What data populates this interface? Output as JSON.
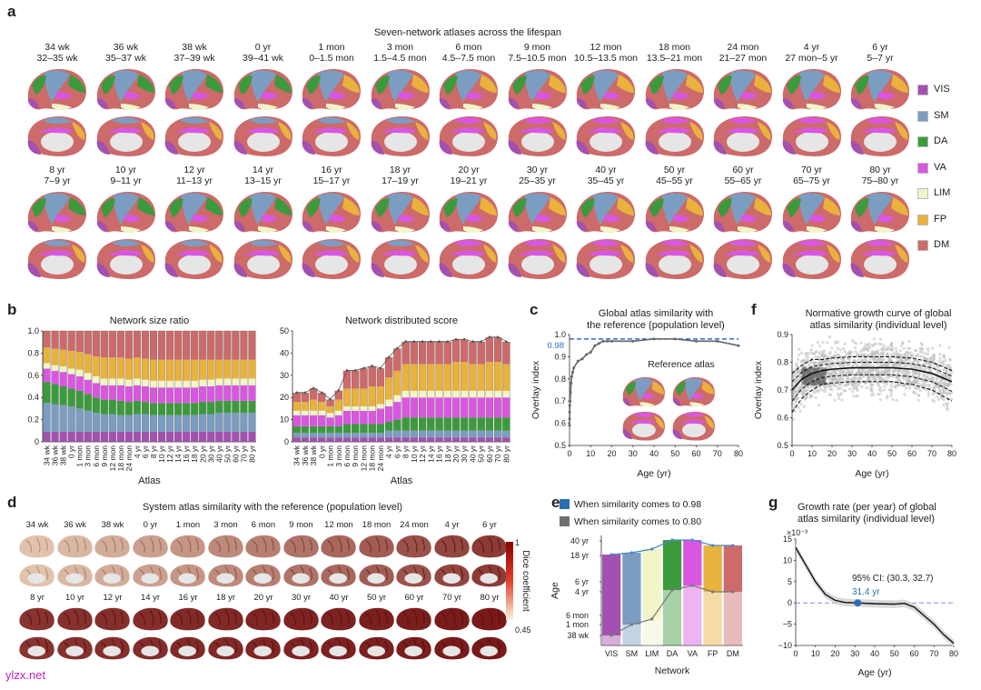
{
  "panel_a": {
    "letter": "a",
    "title": "Seven-network atlases across the lifespan",
    "row1": [
      {
        "age": "34 wk",
        "range": "32–35 wk"
      },
      {
        "age": "36 wk",
        "range": "35–37 wk"
      },
      {
        "age": "38 wk",
        "range": "37–39 wk"
      },
      {
        "age": "0 yr",
        "range": "39–41 wk"
      },
      {
        "age": "1 mon",
        "range": "0–1.5 mon"
      },
      {
        "age": "3 mon",
        "range": "1.5–4.5 mon"
      },
      {
        "age": "6 mon",
        "range": "4.5–7.5 mon"
      },
      {
        "age": "9 mon",
        "range": "7.5–10.5 mon"
      },
      {
        "age": "12 mon",
        "range": "10.5–13.5 mon"
      },
      {
        "age": "18 mon",
        "range": "13.5–21 mon"
      },
      {
        "age": "24 mon",
        "range": "21–27 mon"
      },
      {
        "age": "4 yr",
        "range": "27 mon–5 yr"
      },
      {
        "age": "6 yr",
        "range": "5–7 yr"
      }
    ],
    "row2": [
      {
        "age": "8 yr",
        "range": "7–9 yr"
      },
      {
        "age": "10 yr",
        "range": "9–11 yr"
      },
      {
        "age": "12 yr",
        "range": "11–13 yr"
      },
      {
        "age": "14 yr",
        "range": "13–15 yr"
      },
      {
        "age": "16 yr",
        "range": "15–17 yr"
      },
      {
        "age": "18 yr",
        "range": "17–19 yr"
      },
      {
        "age": "20 yr",
        "range": "19–21 yr"
      },
      {
        "age": "30 yr",
        "range": "25–35 yr"
      },
      {
        "age": "40 yr",
        "range": "35–45 yr"
      },
      {
        "age": "50 yr",
        "range": "45–55 yr"
      },
      {
        "age": "60 yr",
        "range": "55–65 yr"
      },
      {
        "age": "70 yr",
        "range": "65–75 yr"
      },
      {
        "age": "80 yr",
        "range": "75–80 yr"
      }
    ],
    "legend": [
      {
        "name": "VIS",
        "color": "#a350b0"
      },
      {
        "name": "SM",
        "color": "#7c9dc2"
      },
      {
        "name": "DA",
        "color": "#3b9a3c"
      },
      {
        "name": "VA",
        "color": "#d957e0"
      },
      {
        "name": "LIM",
        "color": "#f2f5c8"
      },
      {
        "name": "FP",
        "color": "#e9b23c"
      },
      {
        "name": "DM",
        "color": "#cd6a6a"
      }
    ]
  },
  "panel_b": {
    "letter": "b",
    "atlases": [
      "34 wk",
      "36 wk",
      "38 wk",
      "0 yr",
      "1 mon",
      "3 mon",
      "6 mon",
      "9 mon",
      "12 mon",
      "18 mon",
      "24 mon",
      "4 yr",
      "6 yr",
      "8 yr",
      "10 yr",
      "12 yr",
      "14 yr",
      "16 yr",
      "18 yr",
      "20 yr",
      "30 yr",
      "40 yr",
      "50 yr",
      "60 yr",
      "70 yr",
      "80 yr"
    ],
    "xlabel": "Atlas",
    "left": {
      "title": "Network size ratio",
      "yticks": [
        "0",
        "0.2",
        "0.4",
        "0.6",
        "0.8",
        "1.0"
      ]
    },
    "right": {
      "title": "Network distributed score",
      "yticks": [
        "0",
        "10",
        "20",
        "30",
        "40",
        "50"
      ]
    }
  },
  "panel_c": {
    "letter": "c",
    "title1": "Global atlas similarity with",
    "title2": "the reference (population level)",
    "ylabel": "Overlay index",
    "xlabel": "Age (yr)",
    "ref_label": "0.98",
    "inset": "Reference atlas",
    "yticks": [
      "0.5",
      "0.6",
      "0.7",
      "0.8",
      "0.9",
      "1.0"
    ],
    "xticks": [
      "0",
      "10",
      "20",
      "30",
      "40",
      "50",
      "60",
      "70",
      "80"
    ]
  },
  "panel_d": {
    "letter": "d",
    "title": "System atlas similarity with the reference (population level)",
    "row1": [
      "34 wk",
      "36 wk",
      "38 wk",
      "0 yr",
      "1 mon",
      "3 mon",
      "6 mon",
      "9 mon",
      "12 mon",
      "18 mon",
      "24 mon",
      "4 yr",
      "6 yr"
    ],
    "row2": [
      "8 yr",
      "10 yr",
      "12 yr",
      "14 yr",
      "16 yr",
      "18 yr",
      "20 yr",
      "30 yr",
      "40 yr",
      "50 yr",
      "60 yr",
      "70 yr",
      "80 yr"
    ],
    "cbar_label": "Dice coefficient",
    "cbar_max": "1",
    "cbar_min": "0.45"
  },
  "panel_e": {
    "letter": "e",
    "legend1": "When similarity comes to 0.98",
    "legend2": "When similarity comes to 0.80",
    "color1": "#2a6fb5",
    "color2": "#707070",
    "ylabel": "Age",
    "xlabel": "Network",
    "yticks": [
      "40 yr",
      "18 yr",
      "6 yr",
      "4 yr",
      "6 mon",
      "1 mon",
      "38 wk"
    ],
    "networks": [
      "VIS",
      "SM",
      "LIM",
      "DA",
      "VA",
      "FP",
      "DM"
    ]
  },
  "panel_f": {
    "letter": "f",
    "title1": "Normative growth curve of global",
    "title2": "atlas similarity (individual level)",
    "ylabel": "Overlay index",
    "xlabel": "Age (yr)",
    "yticks": [
      "0.5",
      "0.6",
      "0.7",
      "0.8",
      "0.9"
    ],
    "xticks": [
      "0",
      "10",
      "20",
      "30",
      "40",
      "50",
      "60",
      "70",
      "80"
    ]
  },
  "panel_g": {
    "letter": "g",
    "title1": "Growth rate (per year) of global",
    "title2": "atlas similarity (individual level)",
    "exponent": "×10⁻³",
    "ci": "95% CI: (30.3, 32.7)",
    "peak": "31.4 yr",
    "xlabel": "Age (yr)",
    "yticks": [
      "15",
      "10",
      "5",
      "0",
      "−5",
      "−10"
    ],
    "xticks": [
      "0",
      "10",
      "20",
      "30",
      "40",
      "50",
      "60",
      "70",
      "80"
    ]
  },
  "watermark": "ylzx.net",
  "chart_data": [
    {
      "type": "bar",
      "title": "Network size ratio",
      "stacked": true,
      "xlabel": "Atlas",
      "ylabel": "",
      "ylim": [
        0,
        1.0
      ],
      "categories": [
        "34 wk",
        "36 wk",
        "38 wk",
        "0 yr",
        "1 mon",
        "3 mon",
        "6 mon",
        "9 mon",
        "12 mon",
        "18 mon",
        "24 mon",
        "4 yr",
        "6 yr",
        "8 yr",
        "10 yr",
        "12 yr",
        "14 yr",
        "16 yr",
        "18 yr",
        "20 yr",
        "30 yr",
        "40 yr",
        "50 yr",
        "60 yr",
        "70 yr",
        "80 yr"
      ],
      "series": [
        {
          "name": "VIS",
          "values": [
            0.09,
            0.09,
            0.09,
            0.09,
            0.09,
            0.09,
            0.09,
            0.09,
            0.09,
            0.09,
            0.09,
            0.09,
            0.09,
            0.09,
            0.09,
            0.09,
            0.09,
            0.09,
            0.09,
            0.09,
            0.09,
            0.09,
            0.09,
            0.09,
            0.09,
            0.09
          ]
        },
        {
          "name": "SM",
          "values": [
            0.26,
            0.25,
            0.24,
            0.23,
            0.21,
            0.19,
            0.17,
            0.16,
            0.16,
            0.15,
            0.15,
            0.16,
            0.16,
            0.15,
            0.15,
            0.15,
            0.15,
            0.15,
            0.15,
            0.16,
            0.16,
            0.17,
            0.17,
            0.17,
            0.17,
            0.17
          ]
        },
        {
          "name": "DA",
          "values": [
            0.19,
            0.18,
            0.17,
            0.16,
            0.16,
            0.15,
            0.14,
            0.13,
            0.13,
            0.13,
            0.12,
            0.12,
            0.11,
            0.11,
            0.11,
            0.11,
            0.11,
            0.11,
            0.11,
            0.11,
            0.11,
            0.11,
            0.11,
            0.11,
            0.11,
            0.11
          ]
        },
        {
          "name": "VA",
          "values": [
            0.12,
            0.12,
            0.13,
            0.13,
            0.13,
            0.13,
            0.13,
            0.13,
            0.13,
            0.14,
            0.14,
            0.14,
            0.14,
            0.14,
            0.14,
            0.14,
            0.14,
            0.14,
            0.14,
            0.14,
            0.14,
            0.14,
            0.14,
            0.14,
            0.14,
            0.14
          ]
        },
        {
          "name": "LIM",
          "values": [
            0.05,
            0.05,
            0.05,
            0.05,
            0.06,
            0.06,
            0.06,
            0.06,
            0.06,
            0.06,
            0.06,
            0.06,
            0.06,
            0.06,
            0.06,
            0.06,
            0.06,
            0.06,
            0.06,
            0.06,
            0.06,
            0.06,
            0.06,
            0.06,
            0.06,
            0.06
          ]
        },
        {
          "name": "FP",
          "values": [
            0.14,
            0.15,
            0.15,
            0.16,
            0.16,
            0.17,
            0.18,
            0.19,
            0.19,
            0.19,
            0.19,
            0.19,
            0.19,
            0.19,
            0.19,
            0.19,
            0.19,
            0.19,
            0.19,
            0.18,
            0.18,
            0.17,
            0.17,
            0.17,
            0.17,
            0.17
          ]
        },
        {
          "name": "DM",
          "values": [
            0.15,
            0.16,
            0.17,
            0.18,
            0.19,
            0.21,
            0.23,
            0.24,
            0.24,
            0.24,
            0.25,
            0.24,
            0.25,
            0.26,
            0.26,
            0.26,
            0.26,
            0.26,
            0.26,
            0.26,
            0.26,
            0.26,
            0.26,
            0.26,
            0.26,
            0.26
          ]
        }
      ]
    },
    {
      "type": "bar",
      "title": "Network distributed score",
      "stacked": true,
      "xlabel": "Atlas",
      "ylabel": "",
      "ylim": [
        0,
        50
      ],
      "categories": [
        "34 wk",
        "36 wk",
        "38 wk",
        "0 yr",
        "1 mon",
        "3 mon",
        "6 mon",
        "9 mon",
        "12 mon",
        "18 mon",
        "24 mon",
        "4 yr",
        "6 yr",
        "8 yr",
        "10 yr",
        "12 yr",
        "14 yr",
        "16 yr",
        "18 yr",
        "20 yr",
        "30 yr",
        "40 yr",
        "50 yr",
        "60 yr",
        "70 yr",
        "80 yr"
      ],
      "series": [
        {
          "name": "VIS",
          "values": [
            2,
            2,
            2,
            2,
            2,
            2,
            2,
            2,
            2,
            2,
            2,
            2,
            2,
            2,
            2,
            2,
            2,
            2,
            2,
            2,
            2,
            2,
            2,
            2,
            2,
            2
          ]
        },
        {
          "name": "SM",
          "values": [
            2,
            2,
            2,
            2,
            2,
            2,
            2,
            2,
            2,
            2,
            2,
            3,
            3,
            3,
            3,
            3,
            3,
            3,
            3,
            3,
            3,
            3,
            3,
            3,
            3,
            3
          ]
        },
        {
          "name": "DA",
          "values": [
            3,
            3,
            3,
            3,
            3,
            3,
            4,
            4,
            4,
            4,
            4,
            4,
            5,
            6,
            6,
            6,
            6,
            6,
            6,
            6,
            6,
            6,
            6,
            6,
            6,
            6
          ]
        },
        {
          "name": "VA",
          "values": [
            5,
            5,
            5,
            5,
            4,
            5,
            6,
            6,
            6,
            6,
            7,
            7,
            8,
            9,
            9,
            9,
            9,
            9,
            9,
            9,
            9,
            9,
            9,
            9,
            9,
            9
          ]
        },
        {
          "name": "LIM",
          "values": [
            2,
            2,
            2,
            2,
            2,
            2,
            2,
            2,
            2,
            2,
            2,
            3,
            3,
            3,
            3,
            3,
            3,
            3,
            3,
            3,
            3,
            3,
            3,
            3,
            3,
            3
          ]
        },
        {
          "name": "FP",
          "values": [
            4,
            4,
            5,
            4,
            3,
            5,
            8,
            8,
            8,
            9,
            8,
            10,
            11,
            12,
            12,
            12,
            12,
            12,
            12,
            13,
            13,
            12,
            12,
            13,
            13,
            12
          ]
        },
        {
          "name": "DM",
          "values": [
            4,
            4,
            5,
            4,
            3,
            4,
            8,
            8,
            9,
            9,
            8,
            9,
            10,
            10,
            10,
            10,
            10,
            10,
            10,
            10,
            10,
            10,
            10,
            11,
            11,
            10
          ]
        }
      ]
    },
    {
      "type": "line",
      "title": "Global atlas similarity with the reference (population level)",
      "xlabel": "Age (yr)",
      "ylabel": "Overlay index",
      "xlim": [
        0,
        80
      ],
      "ylim": [
        0.5,
        1.0
      ],
      "x": [
        -0.05,
        0.03,
        0.06,
        0.1,
        0.25,
        0.5,
        0.75,
        1,
        1.5,
        2,
        4,
        6,
        8,
        10,
        12,
        14,
        16,
        18,
        20,
        30,
        40,
        50,
        60,
        70,
        80
      ],
      "values": [
        0.59,
        0.62,
        0.65,
        0.68,
        0.7,
        0.74,
        0.78,
        0.81,
        0.83,
        0.85,
        0.88,
        0.89,
        0.91,
        0.92,
        0.95,
        0.96,
        0.97,
        0.97,
        0.97,
        0.97,
        0.98,
        0.98,
        0.97,
        0.97,
        0.95
      ],
      "reference_line": 0.98
    },
    {
      "type": "scatter",
      "title": "Normative growth curve of global atlas similarity (individual level)",
      "xlabel": "Age (yr)",
      "ylabel": "Overlay index",
      "xlim": [
        0,
        80
      ],
      "ylim": [
        0.5,
        0.9
      ],
      "series": [
        {
          "name": "median",
          "x": [
            0,
            5,
            10,
            15,
            20,
            30,
            40,
            50,
            60,
            70,
            80
          ],
          "values": [
            0.7,
            0.74,
            0.76,
            0.77,
            0.775,
            0.78,
            0.78,
            0.78,
            0.775,
            0.76,
            0.73
          ]
        },
        {
          "name": "upper",
          "x": [
            0,
            5,
            10,
            15,
            20,
            30,
            40,
            50,
            60,
            70,
            80
          ],
          "values": [
            0.76,
            0.79,
            0.81,
            0.81,
            0.815,
            0.82,
            0.82,
            0.82,
            0.815,
            0.8,
            0.77
          ]
        },
        {
          "name": "lower",
          "x": [
            0,
            5,
            10,
            15,
            20,
            30,
            40,
            50,
            60,
            70,
            80
          ],
          "values": [
            0.62,
            0.67,
            0.7,
            0.72,
            0.725,
            0.73,
            0.73,
            0.73,
            0.72,
            0.7,
            0.66
          ]
        }
      ]
    },
    {
      "type": "line",
      "title": "Growth rate (per year) of global atlas similarity (individual level)",
      "xlabel": "Age (yr)",
      "ylabel": "",
      "xlim": [
        0,
        80
      ],
      "ylim": [
        -10,
        15
      ],
      "x": [
        0,
        5,
        10,
        15,
        20,
        25,
        31.4,
        40,
        50,
        55,
        60,
        65,
        70,
        75,
        80
      ],
      "values": [
        13,
        9,
        5,
        2,
        0.6,
        0.1,
        0,
        -0.2,
        -0.3,
        -0.1,
        -1,
        -3,
        -5,
        -7.5,
        -9.5
      ],
      "peak_age": 31.4
    }
  ]
}
